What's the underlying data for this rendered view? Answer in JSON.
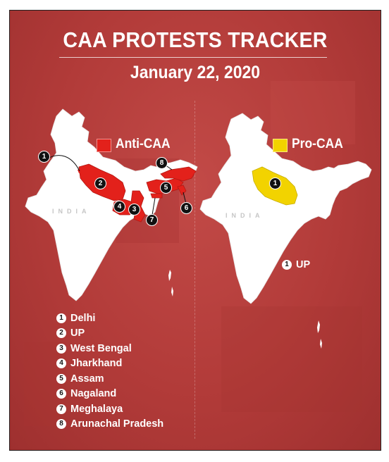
{
  "title": "CAA PROTESTS TRACKER",
  "date": "January 22, 2020",
  "map_watermark": "INDIA",
  "colors": {
    "background": "#b23b39",
    "map_land": "#ffffff",
    "anti_caa": "#e3211b",
    "pro_caa": "#f2d300"
  },
  "anti_map": {
    "legend_label": "Anti-CAA",
    "markers": [
      "1",
      "2",
      "3",
      "4",
      "5",
      "6",
      "7",
      "8"
    ]
  },
  "pro_map": {
    "legend_label": "Pro-CAA",
    "marker": "1",
    "note_number": "1",
    "note_label": "UP"
  },
  "anti_key": [
    {
      "num": "1",
      "label": "Delhi"
    },
    {
      "num": "2",
      "label": "UP"
    },
    {
      "num": "3",
      "label": "West Bengal"
    },
    {
      "num": "4",
      "label": "Jharkhand"
    },
    {
      "num": "5",
      "label": "Assam"
    },
    {
      "num": "6",
      "label": "Nagaland"
    },
    {
      "num": "7",
      "label": "Meghalaya"
    },
    {
      "num": "8",
      "label": "Arunachal Pradesh"
    }
  ]
}
